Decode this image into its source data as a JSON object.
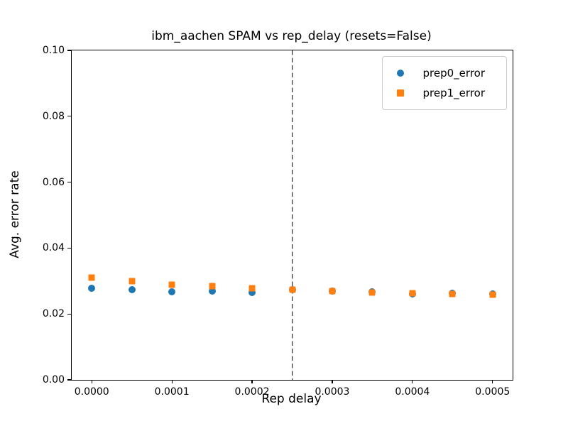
{
  "figure": {
    "background": "#ffffff"
  },
  "chart_data": {
    "type": "scatter",
    "title": "ibm_aachen SPAM vs rep_delay (resets=False)",
    "xlabel": "Rep delay",
    "ylabel": "Avg. error rate",
    "xlim": [
      -2.5e-05,
      0.000525
    ],
    "ylim": [
      0.0,
      0.1
    ],
    "grid": false,
    "x": [
      0.0,
      5e-05,
      0.0001,
      0.00015,
      0.0002,
      0.00025,
      0.0003,
      0.00035,
      0.0004,
      0.00045,
      0.0005
    ],
    "series": [
      {
        "name": "prep0_error",
        "marker": "circle",
        "color": "#1f77b4",
        "values": [
          0.0277,
          0.0274,
          0.0267,
          0.027,
          0.0265,
          0.0273,
          0.027,
          0.0268,
          0.0261,
          0.0262,
          0.026
        ]
      },
      {
        "name": "prep1_error",
        "marker": "square",
        "color": "#ff7f0e",
        "values": [
          0.031,
          0.03,
          0.0289,
          0.0285,
          0.0279,
          0.0274,
          0.027,
          0.0266,
          0.0263,
          0.0261,
          0.0258
        ]
      }
    ],
    "xticks": {
      "values": [
        0.0,
        0.0001,
        0.0002,
        0.0003,
        0.0004,
        0.0005
      ],
      "labels": [
        "0.0000",
        "0.0001",
        "0.0002",
        "0.0003",
        "0.0004",
        "0.0005"
      ]
    },
    "yticks": {
      "values": [
        0.0,
        0.02,
        0.04,
        0.06,
        0.08,
        0.1
      ],
      "labels": [
        "0.00",
        "0.02",
        "0.04",
        "0.06",
        "0.08",
        "0.10"
      ]
    },
    "vline": {
      "x": 0.00025,
      "style": "dashed",
      "color": "#000000"
    },
    "legend": {
      "position": "upper right",
      "entries": [
        "prep0_error",
        "prep1_error"
      ]
    }
  }
}
